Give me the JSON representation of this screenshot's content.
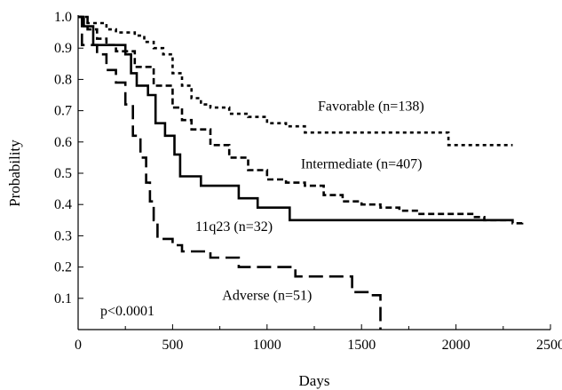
{
  "chart_data": {
    "type": "line",
    "subtype": "kaplan-meier step curves",
    "title": "",
    "xlabel": "Days",
    "ylabel": "Probability",
    "xlim": [
      0,
      2500
    ],
    "ylim": [
      0,
      1.0
    ],
    "x_ticks": [
      0,
      500,
      1000,
      1500,
      2000,
      2500
    ],
    "y_ticks": [
      0.1,
      0.2,
      0.3,
      0.4,
      0.5,
      0.6,
      0.7,
      0.8,
      0.9,
      1.0
    ],
    "y_tick_labels": [
      "0.1",
      "0.2",
      "0.3",
      "0.4",
      "0.5",
      "0.6",
      "0.7",
      "0.8",
      "0.9",
      "1.0"
    ],
    "grid": false,
    "annotation": "p<0.0001",
    "series": [
      {
        "name": "Favorable (n=138)",
        "line_style": "dotted-dash",
        "points": [
          [
            0,
            1.0
          ],
          [
            50,
            0.98
          ],
          [
            150,
            0.96
          ],
          [
            200,
            0.95
          ],
          [
            300,
            0.94
          ],
          [
            350,
            0.92
          ],
          [
            400,
            0.9
          ],
          [
            450,
            0.88
          ],
          [
            500,
            0.82
          ],
          [
            550,
            0.78
          ],
          [
            600,
            0.74
          ],
          [
            650,
            0.72
          ],
          [
            700,
            0.71
          ],
          [
            800,
            0.69
          ],
          [
            900,
            0.68
          ],
          [
            1000,
            0.66
          ],
          [
            1100,
            0.65
          ],
          [
            1200,
            0.63
          ],
          [
            1500,
            0.63
          ],
          [
            1950,
            0.63
          ],
          [
            1960,
            0.59
          ],
          [
            2300,
            0.59
          ]
        ]
      },
      {
        "name": "Intermediate (n=407)",
        "line_style": "short-dash",
        "points": [
          [
            0,
            1.0
          ],
          [
            50,
            0.96
          ],
          [
            100,
            0.93
          ],
          [
            150,
            0.91
          ],
          [
            200,
            0.89
          ],
          [
            300,
            0.84
          ],
          [
            400,
            0.78
          ],
          [
            500,
            0.71
          ],
          [
            550,
            0.67
          ],
          [
            600,
            0.64
          ],
          [
            700,
            0.59
          ],
          [
            800,
            0.55
          ],
          [
            900,
            0.51
          ],
          [
            1000,
            0.48
          ],
          [
            1100,
            0.47
          ],
          [
            1200,
            0.46
          ],
          [
            1300,
            0.43
          ],
          [
            1400,
            0.41
          ],
          [
            1500,
            0.4
          ],
          [
            1600,
            0.39
          ],
          [
            1700,
            0.38
          ],
          [
            1800,
            0.37
          ],
          [
            1900,
            0.37
          ],
          [
            2000,
            0.37
          ],
          [
            2100,
            0.36
          ],
          [
            2150,
            0.35
          ],
          [
            2300,
            0.34
          ],
          [
            2350,
            0.35
          ]
        ]
      },
      {
        "name": "11q23 (n=32)",
        "line_style": "solid",
        "points": [
          [
            0,
            1.0
          ],
          [
            30,
            0.97
          ],
          [
            80,
            0.91
          ],
          [
            200,
            0.91
          ],
          [
            250,
            0.88
          ],
          [
            280,
            0.82
          ],
          [
            310,
            0.78
          ],
          [
            370,
            0.75
          ],
          [
            410,
            0.66
          ],
          [
            460,
            0.62
          ],
          [
            510,
            0.56
          ],
          [
            540,
            0.49
          ],
          [
            650,
            0.46
          ],
          [
            850,
            0.42
          ],
          [
            950,
            0.39
          ],
          [
            1120,
            0.35
          ],
          [
            2300,
            0.35
          ]
        ]
      },
      {
        "name": "Adverse (n=51)",
        "line_style": "long-dash",
        "points": [
          [
            0,
            1.0
          ],
          [
            20,
            0.91
          ],
          [
            100,
            0.88
          ],
          [
            150,
            0.83
          ],
          [
            200,
            0.79
          ],
          [
            250,
            0.72
          ],
          [
            290,
            0.62
          ],
          [
            330,
            0.55
          ],
          [
            360,
            0.47
          ],
          [
            380,
            0.41
          ],
          [
            400,
            0.35
          ],
          [
            420,
            0.29
          ],
          [
            500,
            0.27
          ],
          [
            550,
            0.25
          ],
          [
            700,
            0.23
          ],
          [
            850,
            0.2
          ],
          [
            1150,
            0.17
          ],
          [
            1450,
            0.12
          ],
          [
            1550,
            0.11
          ],
          [
            1600,
            0.0
          ]
        ]
      }
    ],
    "labels": [
      {
        "text": "Favorable (n=138)",
        "x": 1550,
        "y": 0.7
      },
      {
        "text": "Intermediate (n=407)",
        "x": 1500,
        "y": 0.515
      },
      {
        "text": "11q23 (n=32)",
        "x": 825,
        "y": 0.315
      },
      {
        "text": "Adverse (n=51)",
        "x": 1000,
        "y": 0.095
      }
    ]
  }
}
